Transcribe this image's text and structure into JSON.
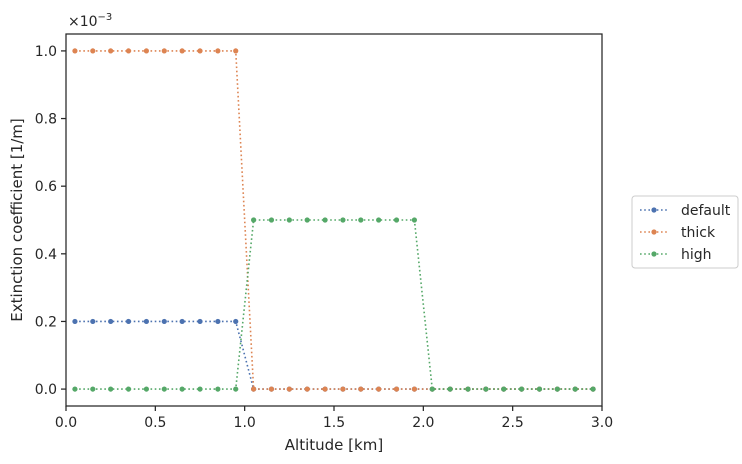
{
  "chart_data": {
    "type": "line",
    "xlabel": "Altitude [km]",
    "ylabel": "Extinction coefficient [1/m]",
    "y_offset_label": "×10",
    "y_offset_exponent": "−3",
    "xlim": [
      0,
      3
    ],
    "ylim": [
      -0.05,
      1.05
    ],
    "y_scale_note": "values in units of 1e-3",
    "x_ticks": [
      0,
      0.5,
      1,
      1.5,
      2,
      2.5,
      3
    ],
    "x_tick_labels": [
      "0.0",
      "0.5",
      "1.0",
      "1.5",
      "2.0",
      "2.5",
      "3.0"
    ],
    "y_ticks": [
      0,
      0.2,
      0.4,
      0.6,
      0.8,
      1.0
    ],
    "y_tick_labels": [
      "0.0",
      "0.2",
      "0.4",
      "0.6",
      "0.8",
      "1.0"
    ],
    "grid": false,
    "legend_placement": "outside-right",
    "x": [
      0.05,
      0.15,
      0.25,
      0.35,
      0.45,
      0.55,
      0.65,
      0.75,
      0.85,
      0.95,
      1.05,
      1.15,
      1.25,
      1.35,
      1.45,
      1.55,
      1.65,
      1.75,
      1.85,
      1.95,
      2.05,
      2.15,
      2.25,
      2.35,
      2.45,
      2.55,
      2.65,
      2.75,
      2.85,
      2.95
    ],
    "series": [
      {
        "name": "default",
        "color": "#4c72b0",
        "values": [
          0.2,
          0.2,
          0.2,
          0.2,
          0.2,
          0.2,
          0.2,
          0.2,
          0.2,
          0.2,
          0,
          0,
          0,
          0,
          0,
          0,
          0,
          0,
          0,
          0,
          0,
          0,
          0,
          0,
          0,
          0,
          0,
          0,
          0,
          0
        ]
      },
      {
        "name": "thick",
        "color": "#dd8452",
        "values": [
          1.0,
          1.0,
          1.0,
          1.0,
          1.0,
          1.0,
          1.0,
          1.0,
          1.0,
          1.0,
          0,
          0,
          0,
          0,
          0,
          0,
          0,
          0,
          0,
          0,
          0,
          0,
          0,
          0,
          0,
          0,
          0,
          0,
          0,
          0
        ]
      },
      {
        "name": "high",
        "color": "#55a868",
        "values": [
          0,
          0,
          0,
          0,
          0,
          0,
          0,
          0,
          0,
          0,
          0.5,
          0.5,
          0.5,
          0.5,
          0.5,
          0.5,
          0.5,
          0.5,
          0.5,
          0.5,
          0,
          0,
          0,
          0,
          0,
          0,
          0,
          0,
          0,
          0
        ]
      }
    ]
  }
}
